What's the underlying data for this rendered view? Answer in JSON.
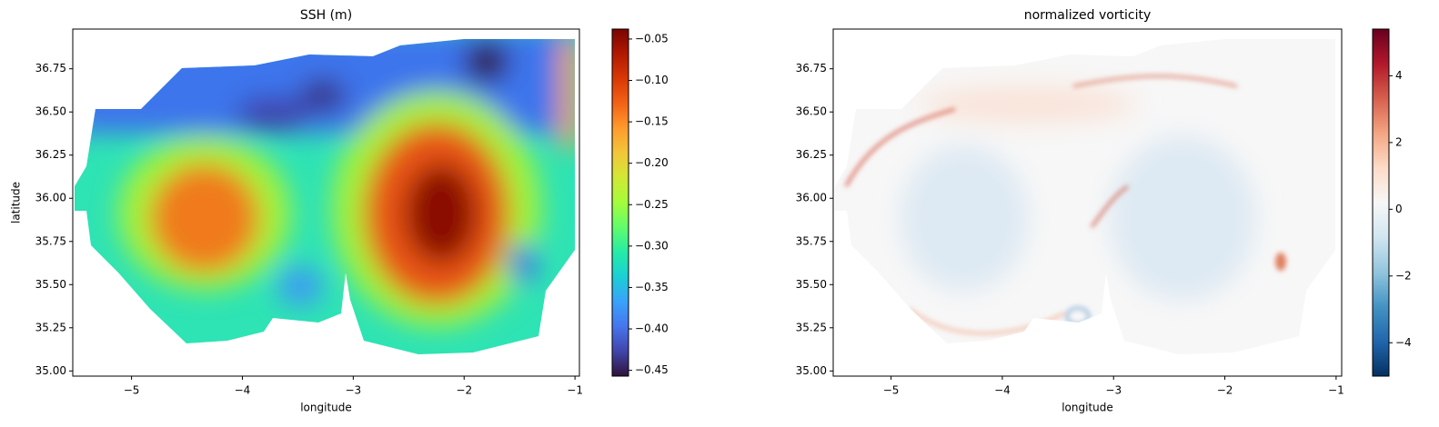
{
  "chart_data": [
    {
      "type": "heatmap",
      "title": "SSH (m)",
      "xlabel": "longitude",
      "ylabel": "latitude",
      "xlim": [
        -5.53,
        -0.96
      ],
      "ylim": [
        34.97,
        36.98
      ],
      "xticks": [
        {
          "value": -5,
          "label": "−5"
        },
        {
          "value": -4,
          "label": "−4"
        },
        {
          "value": -3,
          "label": "−3"
        },
        {
          "value": -2,
          "label": "−2"
        },
        {
          "value": -1,
          "label": "−1"
        }
      ],
      "yticks": [
        {
          "value": 35,
          "label": "35.00"
        },
        {
          "value": 35.25,
          "label": "35.25"
        },
        {
          "value": 35.5,
          "label": "35.50"
        },
        {
          "value": 35.75,
          "label": "35.75"
        },
        {
          "value": 36,
          "label": "36.00"
        },
        {
          "value": 36.25,
          "label": "36.25"
        },
        {
          "value": 36.5,
          "label": "36.50"
        },
        {
          "value": 36.75,
          "label": "36.75"
        }
      ],
      "colorbar": {
        "cmap": "turbo",
        "clim": [
          -0.457,
          -0.038
        ],
        "ticks": [
          {
            "value": -0.05,
            "label": "−0.05"
          },
          {
            "value": -0.1,
            "label": "−0.10"
          },
          {
            "value": -0.15,
            "label": "−0.15"
          },
          {
            "value": -0.2,
            "label": "−0.20"
          },
          {
            "value": -0.25,
            "label": "−0.25"
          },
          {
            "value": -0.3,
            "label": "−0.30"
          },
          {
            "value": -0.35,
            "label": "−0.35"
          },
          {
            "value": -0.4,
            "label": "−0.40"
          },
          {
            "value": -0.45,
            "label": "−0.45"
          }
        ]
      }
    },
    {
      "type": "heatmap",
      "title": "normalized vorticity",
      "xlabel": "longitude",
      "xlim": [
        -5.52,
        -0.95
      ],
      "ylim": [
        34.97,
        36.98
      ],
      "xticks": [
        {
          "value": -5,
          "label": "−5"
        },
        {
          "value": -4,
          "label": "−4"
        },
        {
          "value": -3,
          "label": "−3"
        },
        {
          "value": -2,
          "label": "−2"
        },
        {
          "value": -1,
          "label": "−1"
        }
      ],
      "yticks": [
        {
          "value": 35,
          "label": "35.00"
        },
        {
          "value": 35.25,
          "label": "35.25"
        },
        {
          "value": 35.5,
          "label": "35.50"
        },
        {
          "value": 35.75,
          "label": "35.75"
        },
        {
          "value": 36,
          "label": "36.00"
        },
        {
          "value": 36.25,
          "label": "36.25"
        },
        {
          "value": 36.5,
          "label": "36.50"
        },
        {
          "value": 36.75,
          "label": "36.75"
        }
      ],
      "colorbar": {
        "cmap": "RdBu_r",
        "clim": [
          -5,
          5.4
        ],
        "ticks": [
          {
            "value": -4,
            "label": "−4"
          },
          {
            "value": -2,
            "label": "−2"
          },
          0,
          2,
          4
        ]
      }
    }
  ]
}
